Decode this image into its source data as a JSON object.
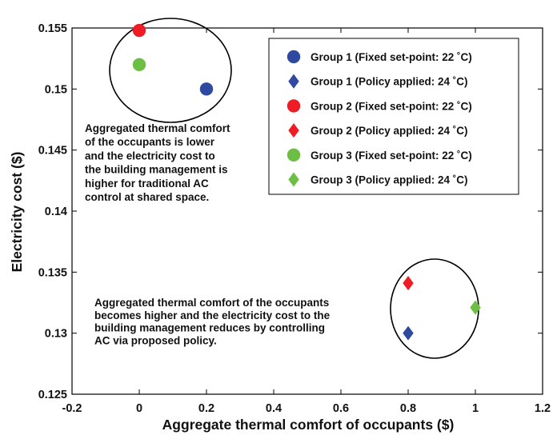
{
  "chart_data": {
    "type": "scatter",
    "xlabel": "Aggregate thermal comfort of occupants ($)",
    "ylabel": "Electricity cost ($)",
    "xlim": [
      -0.2,
      1.2
    ],
    "ylim": [
      0.125,
      0.155
    ],
    "xticks": [
      "-0.2",
      "0",
      "0.2",
      "0.4",
      "0.6",
      "0.8",
      "1",
      "1.2"
    ],
    "yticks": [
      "0.125",
      "0.13",
      "0.135",
      "0.14",
      "0.145",
      "0.15",
      "0.155"
    ],
    "grid": false,
    "legend_position": "top-right",
    "series": [
      {
        "name": "Group 1 (Fixed set-point: 22 ˚C)",
        "marker": "circle",
        "color": "#2E4AA0",
        "points": [
          {
            "x": 0.2,
            "y": 0.15
          }
        ]
      },
      {
        "name": "Group 1 (Policy applied: 24 ˚C)",
        "marker": "diamond",
        "color": "#2E4AA0",
        "points": [
          {
            "x": 0.8,
            "y": 0.13
          }
        ]
      },
      {
        "name": "Group 2 (Fixed set-point: 22 ˚C)",
        "marker": "circle",
        "color": "#EE1C25",
        "points": [
          {
            "x": 0.0,
            "y": 0.1548
          }
        ]
      },
      {
        "name": "Group 2 (Policy applied: 24 ˚C)",
        "marker": "diamond",
        "color": "#EE1C25",
        "points": [
          {
            "x": 0.8,
            "y": 0.1341
          }
        ]
      },
      {
        "name": "Group 3 (Fixed set-point: 22 ˚C)",
        "marker": "circle",
        "color": "#6DBE45",
        "points": [
          {
            "x": 0.0,
            "y": 0.152
          }
        ]
      },
      {
        "name": "Group 3 (Policy applied: 24 ˚C)",
        "marker": "diamond",
        "color": "#6DBE45",
        "points": [
          {
            "x": 1.0,
            "y": 0.1321
          }
        ]
      }
    ],
    "annotations": [
      {
        "lines": [
          "Aggregated thermal comfort",
          "of the occupants is lower",
          "and the electricity cost to",
          "the building management is",
          "higher for traditional AC",
          "control at shared space."
        ]
      },
      {
        "lines": [
          "Aggregated thermal comfort of the occupants",
          "becomes higher and the electricity cost to the",
          "building management reduces by controlling",
          "AC via proposed policy."
        ]
      }
    ]
  }
}
